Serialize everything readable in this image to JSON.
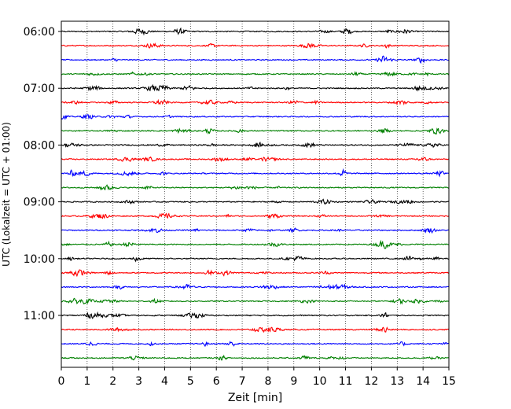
{
  "chart_data": {
    "type": "line",
    "title": "",
    "xlabel": "Zeit  [min]",
    "ylabel": "UTC (Lokalzeit = UTC + 01:00)",
    "xlim": [
      0,
      15
    ],
    "x_ticks": [
      0,
      1,
      2,
      3,
      4,
      5,
      6,
      7,
      8,
      9,
      10,
      11,
      12,
      13,
      14,
      15
    ],
    "x_tick_labels": [
      "0",
      "1",
      "2",
      "3",
      "4",
      "5",
      "6",
      "7",
      "8",
      "9",
      "10",
      "11",
      "12",
      "13",
      "14",
      "15"
    ],
    "y_tick_labels": [
      "06:00",
      "07:00",
      "08:00",
      "09:00",
      "10:00",
      "11:00"
    ],
    "trace_interval_minutes": 15,
    "trace_count": 24,
    "trace_color_cycle": [
      "#000000",
      "#ff0000",
      "#0000ff",
      "#008000"
    ],
    "grid": "vertical dotted at each minute",
    "legend": "none"
  }
}
